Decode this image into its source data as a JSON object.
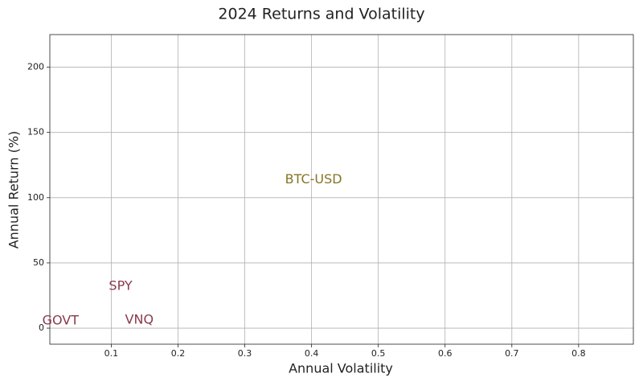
{
  "chart_data": {
    "type": "scatter",
    "title": "2024 Returns and Volatility",
    "x_label": "Annual Volatility",
    "y_label": "Annual Return (%)",
    "labels": [
      "BTC-USD",
      "SPY",
      "GOVT",
      "VNQ"
    ],
    "x": [
      0.403,
      0.114,
      0.024,
      0.142
    ],
    "values": [
      113.6,
      32,
      5.6,
      6.2
    ],
    "colors": [
      "#857525",
      "#8b3a4c",
      "#8b3a4c",
      "#8b3a4c"
    ],
    "xlim": [
      0.008,
      0.882
    ],
    "ylim": [
      -12.3,
      225
    ],
    "xticks": [
      0.1,
      0.2,
      0.3,
      0.4,
      0.5,
      0.6,
      0.7,
      0.8
    ],
    "yticks": [
      0,
      50,
      100,
      150,
      200
    ],
    "grid": true
  }
}
